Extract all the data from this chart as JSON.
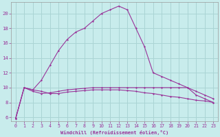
{
  "xlabel": "Windchill (Refroidissement éolien,°C)",
  "background_color": "#c8ecec",
  "grid_color": "#aad4d4",
  "line_color": "#993399",
  "xlim": [
    -0.5,
    23.5
  ],
  "ylim": [
    5.5,
    21.5
  ],
  "xticks": [
    0,
    1,
    2,
    3,
    4,
    5,
    6,
    7,
    8,
    9,
    10,
    11,
    12,
    13,
    14,
    15,
    16,
    17,
    18,
    19,
    20,
    21,
    22,
    23
  ],
  "yticks": [
    6,
    8,
    10,
    12,
    14,
    16,
    18,
    20
  ],
  "series": [
    [
      5.8,
      10.0,
      9.7,
      11.0,
      13.0,
      15.0,
      16.5,
      17.5,
      18.0,
      19.0,
      20.0,
      20.5,
      21.0,
      20.5,
      18.0,
      15.5,
      12.0,
      11.5,
      11.0,
      10.5,
      10.0,
      9.0,
      8.5,
      8.0
    ],
    [
      5.8,
      10.0,
      9.5,
      9.2,
      9.3,
      9.5,
      9.7,
      9.8,
      9.9,
      10.0,
      10.0,
      10.0,
      10.0,
      10.0,
      10.0,
      10.0,
      10.0,
      10.0,
      10.0,
      10.0,
      10.0,
      9.5,
      9.0,
      8.5
    ],
    [
      5.8,
      10.0,
      9.7,
      9.5,
      9.2,
      9.2,
      9.4,
      9.5,
      9.6,
      9.7,
      9.7,
      9.7,
      9.7,
      9.6,
      9.5,
      9.3,
      9.2,
      9.0,
      8.8,
      8.7,
      8.5,
      8.3,
      8.2,
      8.0
    ]
  ]
}
